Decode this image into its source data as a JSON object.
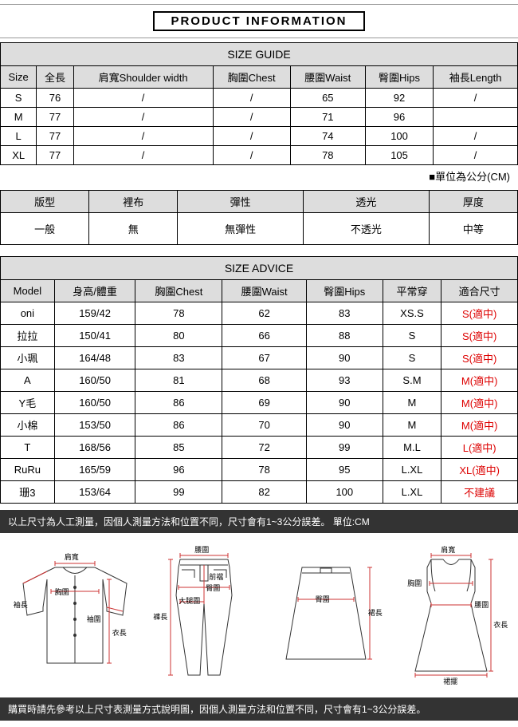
{
  "headerTitle": "PRODUCT INFORMATION",
  "sizeGuide": {
    "title": "SIZE GUIDE",
    "columns": [
      "Size",
      "全長",
      "肩寬Shoulder width",
      "胸圍Chest",
      "腰圍Waist",
      "臀圍Hips",
      "袖長Length"
    ],
    "rows": [
      [
        "S",
        "76",
        "/",
        "/",
        "65",
        "92",
        "/"
      ],
      [
        "M",
        "77",
        "/",
        "/",
        "71",
        "96",
        ""
      ],
      [
        "L",
        "77",
        "/",
        "/",
        "74",
        "100",
        "/"
      ],
      [
        "XL",
        "77",
        "/",
        "/",
        "78",
        "105",
        "/"
      ]
    ],
    "unitNote": "■單位為公分(CM)"
  },
  "fabric": {
    "columns": [
      "版型",
      "裡布",
      "彈性",
      "透光",
      "厚度"
    ],
    "values": [
      "一般",
      "無",
      "無彈性",
      "不透光",
      "中等"
    ]
  },
  "sizeAdvice": {
    "title": "SIZE ADVICE",
    "columns": [
      "Model",
      "身高/體重",
      "胸圍Chest",
      "腰圍Waist",
      "臀圍Hips",
      "平常穿",
      "適合尺寸"
    ],
    "rows": [
      {
        "c": [
          "oni",
          "159/42",
          "78",
          "62",
          "83",
          "XS.S"
        ],
        "fit": "S(適中)",
        "red": true
      },
      {
        "c": [
          "拉拉",
          "150/41",
          "80",
          "66",
          "88",
          "S"
        ],
        "fit": "S(適中)",
        "red": true
      },
      {
        "c": [
          "小珮",
          "164/48",
          "83",
          "67",
          "90",
          "S"
        ],
        "fit": "S(適中)",
        "red": true
      },
      {
        "c": [
          "A",
          "160/50",
          "81",
          "68",
          "93",
          "S.M"
        ],
        "fit": "M(適中)",
        "red": true
      },
      {
        "c": [
          "Y毛",
          "160/50",
          "86",
          "69",
          "90",
          "M"
        ],
        "fit": "M(適中)",
        "red": true
      },
      {
        "c": [
          "小棉",
          "153/50",
          "86",
          "70",
          "90",
          "M"
        ],
        "fit": "M(適中)",
        "red": true
      },
      {
        "c": [
          "T",
          "168/56",
          "85",
          "72",
          "99",
          "M.L"
        ],
        "fit": "L(適中)",
        "red": true
      },
      {
        "c": [
          "RuRu",
          "165/59",
          "96",
          "78",
          "95",
          "L.XL"
        ],
        "fit": "XL(適中)",
        "red": true
      },
      {
        "c": [
          "珊3",
          "153/64",
          "99",
          "82",
          "100",
          "L.XL"
        ],
        "fit": "不建議",
        "red": true
      }
    ]
  },
  "note1": "以上尺寸為人工測量，因個人測量方法和位置不同，尺寸會有1~3公分誤差。 單位:CM",
  "note2": "購買時請先參考以上尺寸表測量方式說明圖，因個人測量方法和位置不同，尺寸會有1~3公分誤差。",
  "diagramLabels": {
    "shirt": {
      "shoulder": "肩寬",
      "chest": "胸圍",
      "sleeve": "袖長",
      "cuff": "袖圍",
      "length": "衣長"
    },
    "pants": {
      "waist": "腰圍",
      "front": "前襠",
      "hip": "臀圍",
      "thigh": "大腿圍",
      "length": "褲長"
    },
    "skirt": {
      "hip": "臀圍",
      "length": "裙長"
    },
    "dress": {
      "shoulder": "肩寬",
      "chest": "胸圍",
      "waist": "腰圍",
      "length": "衣長",
      "hem": "裙擺"
    }
  },
  "colors": {
    "line": "#333",
    "measure": "#c33",
    "bg": "#fff"
  }
}
